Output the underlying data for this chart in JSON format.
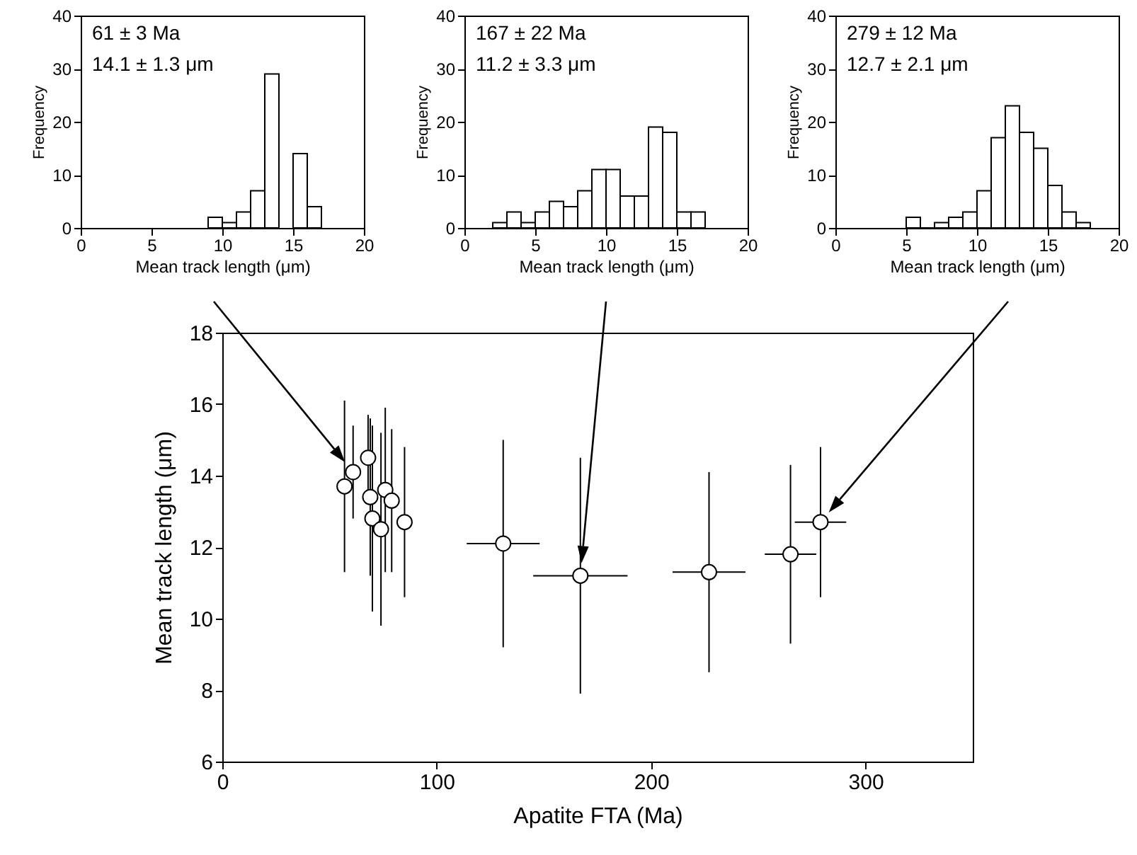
{
  "chart_data": [
    {
      "type": "histogram",
      "xlabel": "Mean track length (μm)",
      "ylabel": "Frequency",
      "annotations": [
        "61 ± 3 Ma",
        "14.1 ± 1.3 μm"
      ],
      "bins": [
        9,
        10,
        11,
        12,
        13,
        14,
        15,
        16,
        17
      ],
      "values": [
        2,
        1,
        3,
        7,
        29,
        null,
        14,
        4
      ],
      "xlim": [
        0,
        20
      ],
      "xticks": [
        0,
        5,
        10,
        15,
        20
      ],
      "ylim": [
        0,
        40
      ],
      "yticks": [
        0,
        10,
        20,
        30,
        40
      ]
    },
    {
      "type": "histogram",
      "xlabel": "Mean track length (μm)",
      "ylabel": "Frequency",
      "annotations": [
        "167 ± 22 Ma",
        "11.2 ± 3.3 μm"
      ],
      "bins": [
        2,
        3,
        4,
        5,
        6,
        7,
        8,
        9,
        10,
        11,
        12,
        13,
        14,
        15,
        16,
        17
      ],
      "values": [
        1,
        3,
        1,
        3,
        5,
        4,
        7,
        11,
        11,
        6,
        6,
        19,
        18,
        3,
        3
      ],
      "xlim": [
        0,
        20
      ],
      "xticks": [
        0,
        5,
        10,
        15,
        20
      ],
      "ylim": [
        0,
        40
      ],
      "yticks": [
        0,
        10,
        20,
        30,
        40
      ]
    },
    {
      "type": "histogram",
      "xlabel": "Mean track length (μm)",
      "ylabel": "Frequency",
      "annotations": [
        "279 ± 12 Ma",
        "12.7 ± 2.1 μm"
      ],
      "bins": [
        5,
        6,
        7,
        8,
        9,
        10,
        11,
        12,
        13,
        14,
        15,
        16,
        17,
        18
      ],
      "values": [
        2,
        0,
        1,
        2,
        3,
        7,
        17,
        23,
        18,
        15,
        8,
        3,
        1
      ],
      "xlim": [
        0,
        20
      ],
      "xticks": [
        0,
        5,
        10,
        15,
        20
      ],
      "ylim": [
        0,
        40
      ],
      "yticks": [
        0,
        10,
        20,
        30,
        40
      ]
    },
    {
      "type": "scatter",
      "xlabel": "Apatite FTA (Ma)",
      "ylabel": "Mean track length (μm)",
      "marker": "circle",
      "x": [
        57,
        61,
        68,
        69,
        70,
        74,
        76,
        79,
        85,
        131,
        167,
        227,
        265,
        279
      ],
      "values": [
        13.7,
        14.1,
        14.5,
        13.4,
        12.8,
        12.5,
        13.6,
        13.3,
        12.7,
        12.1,
        11.2,
        11.3,
        11.8,
        12.7
      ],
      "errors": [
        2.4,
        1.3,
        1.2,
        2.2,
        2.6,
        2.7,
        2.3,
        2.0,
        2.1,
        2.9,
        3.3,
        2.8,
        2.5,
        2.1
      ],
      "xerrors": [
        null,
        null,
        null,
        null,
        null,
        null,
        null,
        null,
        null,
        17,
        22,
        17,
        12,
        12
      ],
      "xlim": [
        0,
        350
      ],
      "xticks": [
        0,
        100,
        200,
        300
      ],
      "ylim": [
        6,
        18
      ],
      "yticks": [
        6,
        8,
        10,
        12,
        14,
        16,
        18
      ]
    }
  ]
}
